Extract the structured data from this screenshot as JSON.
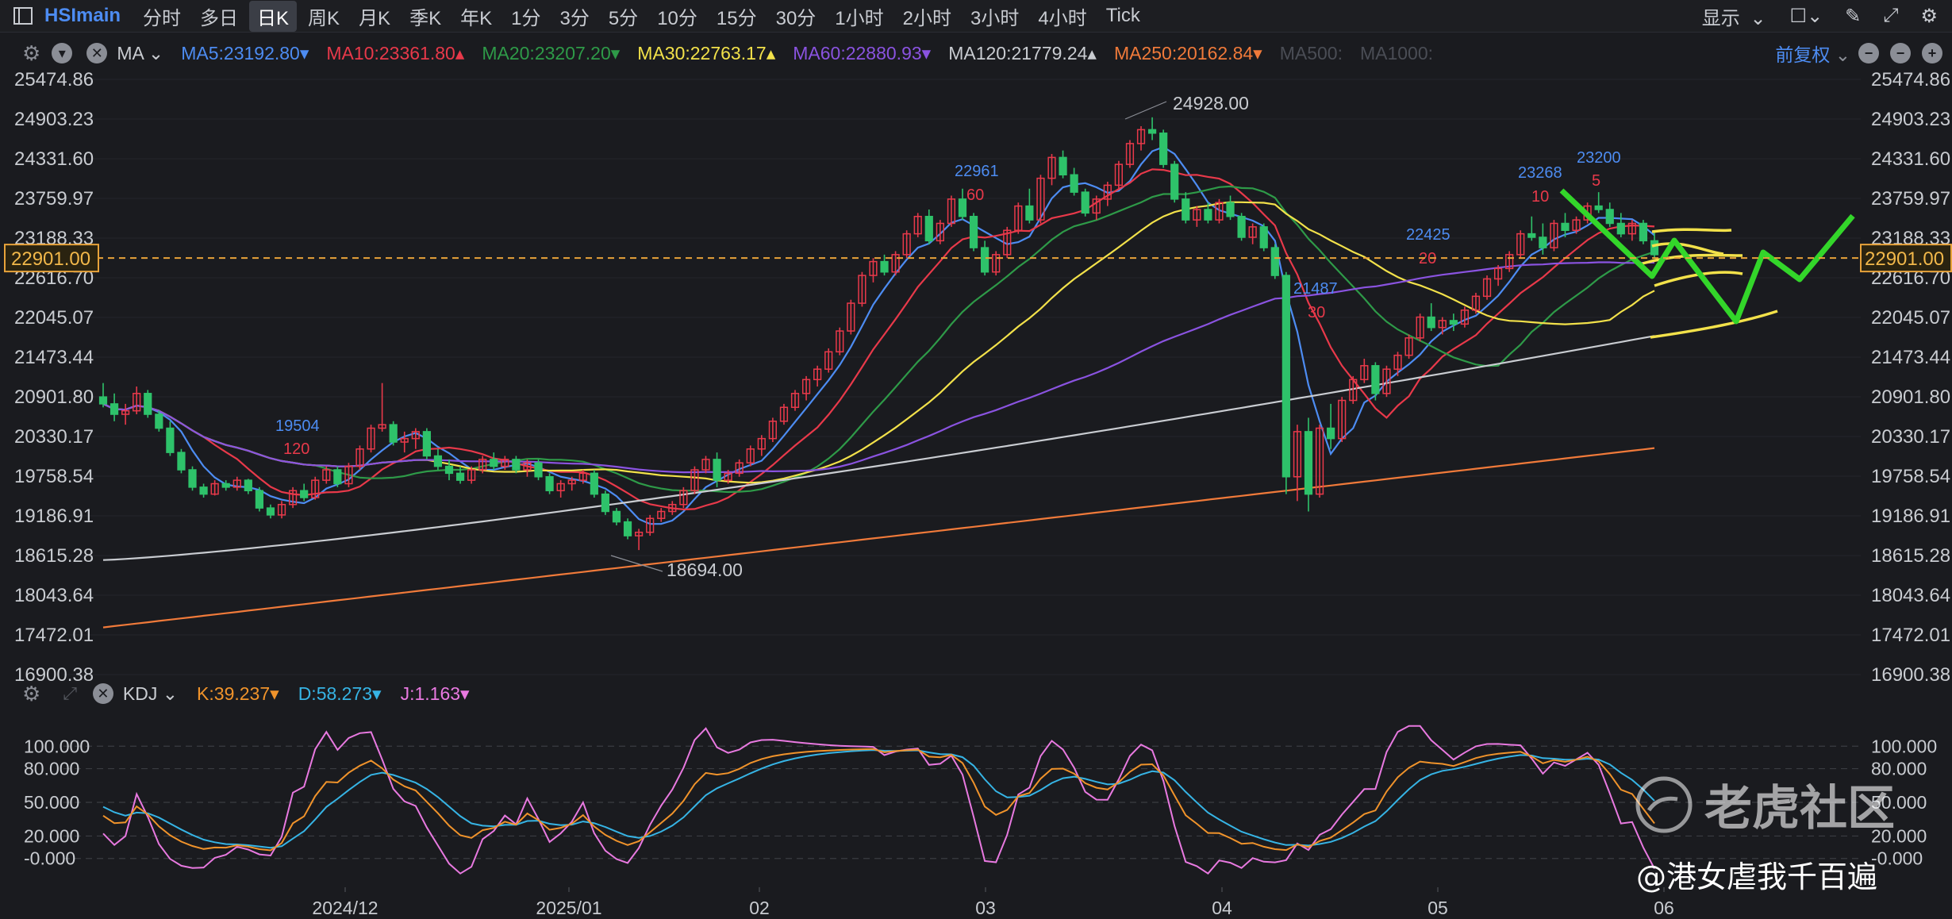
{
  "toolbar": {
    "symbol": "HSImain",
    "timeframes": [
      "分时",
      "多日",
      "日K",
      "周K",
      "月K",
      "季K",
      "年K",
      "1分",
      "3分",
      "5分",
      "10分",
      "15分",
      "30分",
      "1小时",
      "2小时",
      "3小时",
      "4小时",
      "Tick"
    ],
    "active_index": 2,
    "display_label": "显示"
  },
  "ma_bar": {
    "type_label": "MA",
    "adjust_label": "前复权",
    "items": [
      {
        "text": "MA5:23192.80",
        "color": "#4d8cf2"
      },
      {
        "text": "MA10:23361.80",
        "color": "#e8394a"
      },
      {
        "text": "MA20:23207.20",
        "color": "#2e9a48"
      },
      {
        "text": "MA30:22763.17",
        "color": "#f2e14a"
      },
      {
        "text": "MA60:22880.93",
        "color": "#8a53e0"
      },
      {
        "text": "MA120:21779.24",
        "color": "#c9ccd1"
      },
      {
        "text": "MA250:20162.84",
        "color": "#f07a3a"
      },
      {
        "text": "MA500:",
        "color": "#4a4d55"
      },
      {
        "text": "MA1000:",
        "color": "#4a4d55"
      }
    ]
  },
  "kdj_bar": {
    "name_label": "KDJ",
    "k": "K:39.237",
    "d": "D:58.273",
    "j": "J:1.163"
  },
  "price_axis": [
    "25474.86",
    "24903.23",
    "24331.60",
    "23759.97",
    "23188.33",
    "22616.70",
    "22045.07",
    "21473.44",
    "20901.80",
    "20330.17",
    "19758.54",
    "19186.91",
    "18615.28",
    "18043.64",
    "17472.01",
    "16900.38"
  ],
  "current_price": "22901.00",
  "kdj_axis": [
    "100.000",
    "80.000",
    "50.000",
    "20.000",
    "-0.000"
  ],
  "x_axis": [
    "2024/12",
    "2025/01",
    "02",
    "03",
    "04",
    "05",
    "06"
  ],
  "annotations": {
    "high": "24928.00",
    "low": "18694.00",
    "p19504": "19504",
    "n120": "120",
    "p22961": "22961",
    "n60": "60",
    "p21487": "21487",
    "n30": "30",
    "p22425": "22425",
    "n20": "20",
    "p23268": "23268",
    "n10": "10",
    "p23200": "23200",
    "n5": "5"
  },
  "watermark": {
    "brand": "老虎社区",
    "author": "@港女虐我千百遍"
  },
  "chart_data": {
    "type": "candlestick",
    "price_range": [
      16900.38,
      25474.86
    ],
    "kdj_range": [
      -20,
      120
    ],
    "current_price": 22901.0,
    "recorded_high": 24928.0,
    "recorded_low": 18694.0,
    "x_labels": [
      "2024/12",
      "2025/01",
      "02",
      "03",
      "04",
      "05",
      "06"
    ],
    "candles_ohlc": [
      [
        20900,
        21100,
        20750,
        20800
      ],
      [
        20800,
        20950,
        20550,
        20650
      ],
      [
        20650,
        20800,
        20500,
        20700
      ],
      [
        20700,
        21050,
        20650,
        20950
      ],
      [
        20950,
        21000,
        20600,
        20650
      ],
      [
        20650,
        20700,
        20400,
        20450
      ],
      [
        20450,
        20550,
        20050,
        20100
      ],
      [
        20100,
        20150,
        19800,
        19850
      ],
      [
        19850,
        19900,
        19550,
        19600
      ],
      [
        19600,
        19650,
        19450,
        19500
      ],
      [
        19500,
        19700,
        19480,
        19650
      ],
      [
        19650,
        19700,
        19550,
        19600
      ],
      [
        19600,
        19750,
        19550,
        19700
      ],
      [
        19700,
        19720,
        19500,
        19550
      ],
      [
        19550,
        19600,
        19250,
        19300
      ],
      [
        19300,
        19350,
        19150,
        19200
      ],
      [
        19200,
        19400,
        19150,
        19350
      ],
      [
        19350,
        19600,
        19300,
        19550
      ],
      [
        19550,
        19650,
        19400,
        19450
      ],
      [
        19450,
        19750,
        19420,
        19700
      ],
      [
        19700,
        19900,
        19650,
        19850
      ],
      [
        19850,
        19900,
        19600,
        19650
      ],
      [
        19650,
        19950,
        19600,
        19900
      ],
      [
        19900,
        20200,
        19850,
        20150
      ],
      [
        20150,
        20500,
        20100,
        20450
      ],
      [
        20450,
        21100,
        20400,
        20500
      ],
      [
        20500,
        20550,
        20200,
        20250
      ],
      [
        20250,
        20400,
        20100,
        20300
      ],
      [
        20300,
        20450,
        20150,
        20400
      ],
      [
        20400,
        20450,
        20000,
        20050
      ],
      [
        20050,
        20150,
        19850,
        19900
      ],
      [
        19900,
        20000,
        19700,
        19800
      ],
      [
        19800,
        19900,
        19650,
        19700
      ],
      [
        19700,
        19900,
        19650,
        19850
      ],
      [
        19850,
        20050,
        19800,
        20000
      ],
      [
        20000,
        20100,
        19850,
        19900
      ],
      [
        19900,
        20050,
        19850,
        20000
      ],
      [
        20000,
        20050,
        19800,
        19850
      ],
      [
        19850,
        20000,
        19750,
        19950
      ],
      [
        19950,
        20000,
        19700,
        19750
      ],
      [
        19750,
        19800,
        19500,
        19550
      ],
      [
        19550,
        19700,
        19450,
        19650
      ],
      [
        19650,
        19750,
        19550,
        19700
      ],
      [
        19700,
        19850,
        19650,
        19800
      ],
      [
        19800,
        19850,
        19450,
        19500
      ],
      [
        19500,
        19550,
        19200,
        19250
      ],
      [
        19250,
        19300,
        19050,
        19100
      ],
      [
        19100,
        19150,
        18850,
        18900
      ],
      [
        18900,
        19000,
        18694,
        18950
      ],
      [
        18950,
        19200,
        18900,
        19150
      ],
      [
        19150,
        19300,
        19100,
        19250
      ],
      [
        19250,
        19400,
        19200,
        19350
      ],
      [
        19350,
        19600,
        19300,
        19550
      ],
      [
        19550,
        19900,
        19500,
        19850
      ],
      [
        19850,
        20050,
        19800,
        20000
      ],
      [
        20000,
        20100,
        19600,
        19700
      ],
      [
        19700,
        19850,
        19650,
        19800
      ],
      [
        19800,
        20000,
        19750,
        19950
      ],
      [
        19950,
        20200,
        19900,
        20150
      ],
      [
        20150,
        20350,
        20050,
        20300
      ],
      [
        20300,
        20600,
        20250,
        20550
      ],
      [
        20550,
        20800,
        20500,
        20750
      ],
      [
        20750,
        21000,
        20700,
        20950
      ],
      [
        20950,
        21200,
        20850,
        21150
      ],
      [
        21150,
        21350,
        21050,
        21300
      ],
      [
        21300,
        21600,
        21250,
        21550
      ],
      [
        21550,
        21900,
        21500,
        21850
      ],
      [
        21850,
        22300,
        21800,
        22250
      ],
      [
        22250,
        22700,
        22200,
        22650
      ],
      [
        22650,
        22900,
        22550,
        22850
      ],
      [
        22850,
        22950,
        22650,
        22700
      ],
      [
        22700,
        23000,
        22650,
        22950
      ],
      [
        22950,
        23300,
        22900,
        23250
      ],
      [
        23250,
        23550,
        23200,
        23500
      ],
      [
        23500,
        23600,
        23100,
        23150
      ],
      [
        23150,
        23450,
        23100,
        23400
      ],
      [
        23400,
        23800,
        23350,
        23750
      ],
      [
        23750,
        23900,
        23450,
        23500
      ],
      [
        23500,
        23550,
        23000,
        23050
      ],
      [
        23050,
        23150,
        22650,
        22700
      ],
      [
        22700,
        23000,
        22650,
        22950
      ],
      [
        22950,
        23350,
        22900,
        23300
      ],
      [
        23300,
        23700,
        23250,
        23650
      ],
      [
        23650,
        23900,
        23400,
        23450
      ],
      [
        23450,
        24100,
        23400,
        24050
      ],
      [
        24050,
        24400,
        23950,
        24350
      ],
      [
        24350,
        24450,
        24050,
        24100
      ],
      [
        24100,
        24200,
        23800,
        23850
      ],
      [
        23850,
        23900,
        23500,
        23550
      ],
      [
        23550,
        23800,
        23450,
        23750
      ],
      [
        23750,
        24000,
        23650,
        23950
      ],
      [
        23950,
        24300,
        23900,
        24250
      ],
      [
        24250,
        24600,
        24200,
        24550
      ],
      [
        24550,
        24800,
        24450,
        24750
      ],
      [
        24750,
        24928,
        24600,
        24700
      ],
      [
        24700,
        24750,
        24200,
        24250
      ],
      [
        24250,
        24300,
        23700,
        23750
      ],
      [
        23750,
        23850,
        23400,
        23450
      ],
      [
        23450,
        23650,
        23350,
        23600
      ],
      [
        23600,
        23700,
        23400,
        23450
      ],
      [
        23450,
        23750,
        23400,
        23700
      ],
      [
        23700,
        23800,
        23450,
        23500
      ],
      [
        23500,
        23550,
        23150,
        23200
      ],
      [
        23200,
        23400,
        23100,
        23350
      ],
      [
        23350,
        23400,
        23000,
        23050
      ],
      [
        23050,
        23100,
        22600,
        22650
      ],
      [
        22650,
        22700,
        19500,
        19750
      ],
      [
        19750,
        20500,
        19400,
        20400
      ],
      [
        20400,
        20600,
        19250,
        19500
      ],
      [
        19500,
        20500,
        19450,
        20450
      ],
      [
        20450,
        20800,
        20150,
        20300
      ],
      [
        20300,
        20900,
        20250,
        20850
      ],
      [
        20850,
        21200,
        20800,
        21150
      ],
      [
        21150,
        21450,
        21100,
        21350
      ],
      [
        21350,
        21400,
        20850,
        20950
      ],
      [
        20950,
        21350,
        20900,
        21300
      ],
      [
        21300,
        21550,
        21200,
        21500
      ],
      [
        21500,
        21800,
        21450,
        21750
      ],
      [
        21750,
        22100,
        21700,
        22050
      ],
      [
        22050,
        22250,
        21850,
        21900
      ],
      [
        21900,
        22050,
        21800,
        22000
      ],
      [
        22000,
        22100,
        21850,
        21950
      ],
      [
        21950,
        22200,
        21900,
        22150
      ],
      [
        22150,
        22400,
        22100,
        22350
      ],
      [
        22350,
        22650,
        22300,
        22600
      ],
      [
        22600,
        22800,
        22500,
        22750
      ],
      [
        22750,
        23000,
        22700,
        22950
      ],
      [
        22950,
        23300,
        22900,
        23250
      ],
      [
        23250,
        23500,
        23150,
        23200
      ],
      [
        23200,
        23400,
        22950,
        23050
      ],
      [
        23050,
        23450,
        23000,
        23400
      ],
      [
        23400,
        23550,
        23200,
        23300
      ],
      [
        23300,
        23500,
        23250,
        23450
      ],
      [
        23450,
        23700,
        23400,
        23650
      ],
      [
        23650,
        23850,
        23550,
        23600
      ],
      [
        23600,
        23700,
        23350,
        23400
      ],
      [
        23400,
        23550,
        23200,
        23250
      ],
      [
        23250,
        23450,
        23150,
        23400
      ],
      [
        23400,
        23450,
        23100,
        23150
      ],
      [
        23150,
        23300,
        22900,
        22950
      ]
    ],
    "moving_averages": [
      {
        "name": "MA5",
        "color": "#4d8cf2",
        "last": 23192.8
      },
      {
        "name": "MA10",
        "color": "#e8394a",
        "last": 23361.8
      },
      {
        "name": "MA20",
        "color": "#2e9a48",
        "last": 23207.2
      },
      {
        "name": "MA30",
        "color": "#f2e14a",
        "last": 22763.17
      },
      {
        "name": "MA60",
        "color": "#8a53e0",
        "last": 22880.93
      },
      {
        "name": "MA120",
        "color": "#c9ccd1",
        "last": 21779.24
      },
      {
        "name": "MA250",
        "color": "#f07a3a",
        "last": 20162.84
      }
    ],
    "kdj": {
      "k": 39.237,
      "d": 58.273,
      "j": 1.163
    }
  }
}
